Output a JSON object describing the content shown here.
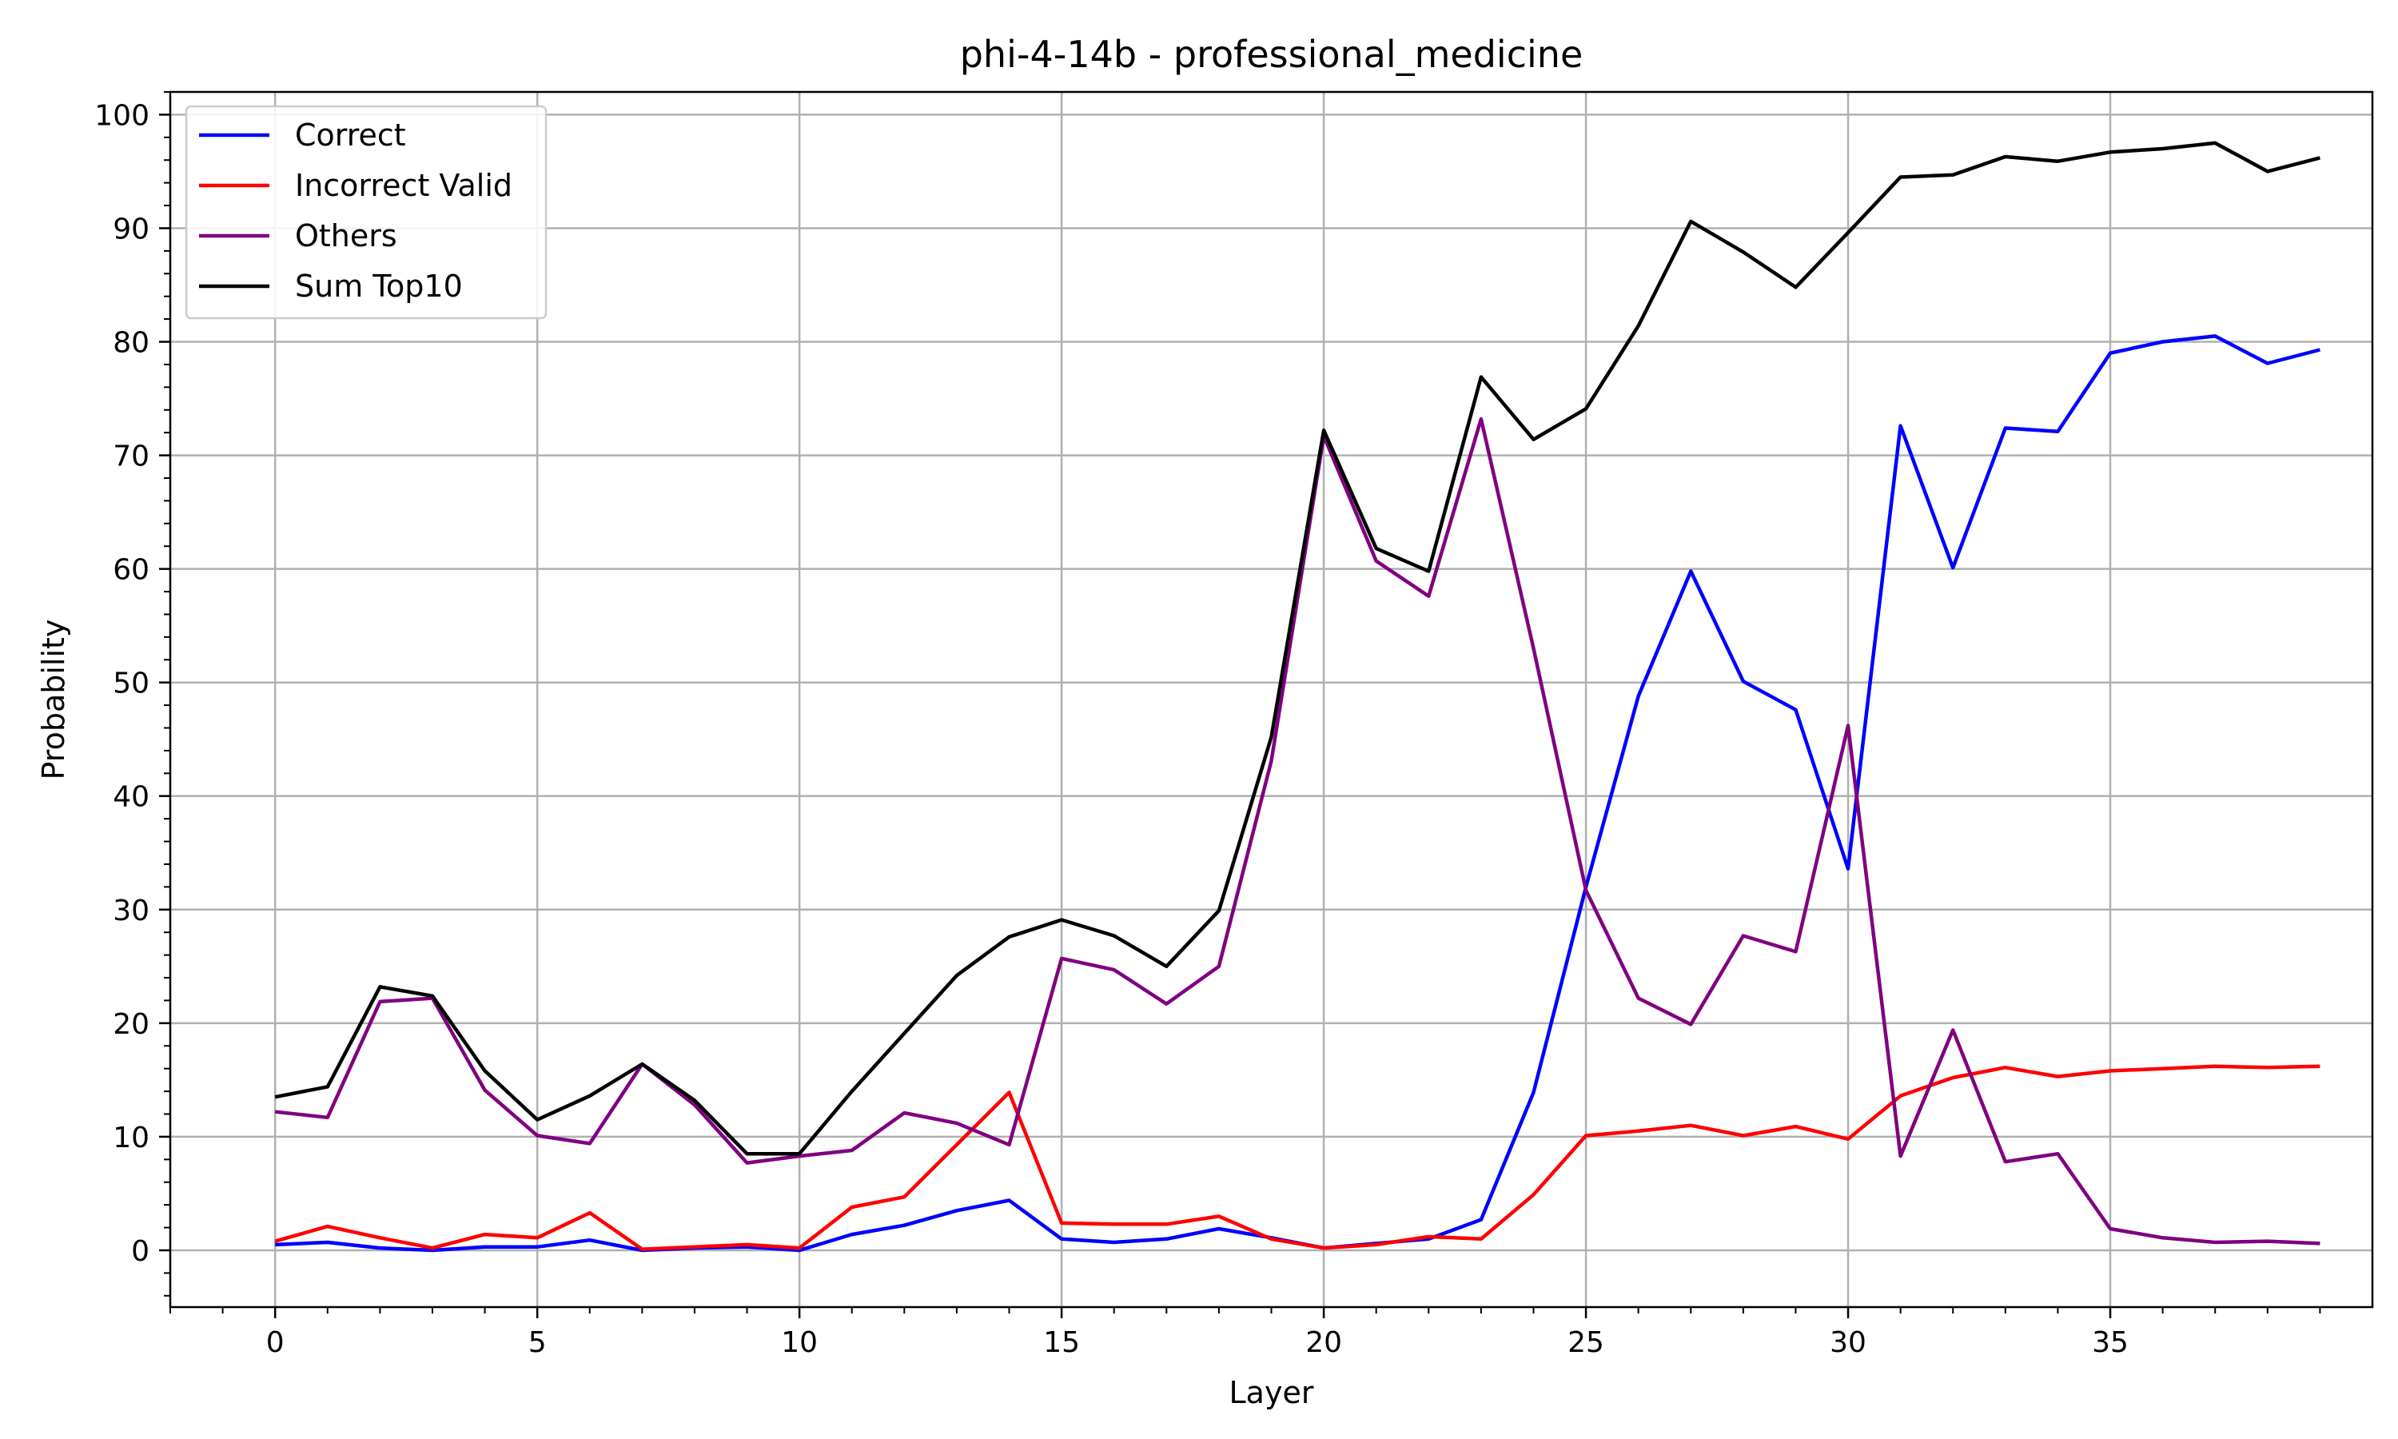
{
  "chart_data": {
    "type": "line",
    "title": "phi-4-14b - professional_medicine",
    "xlabel": "Layer",
    "ylabel": "Probability",
    "xlim": [
      -2,
      40
    ],
    "ylim": [
      -5,
      102
    ],
    "xticks": [
      0,
      5,
      10,
      15,
      20,
      25,
      30,
      35
    ],
    "yticks": [
      0,
      10,
      20,
      30,
      40,
      50,
      60,
      70,
      80,
      90,
      100
    ],
    "grid": true,
    "legend_position": "top-left",
    "x": [
      0,
      1,
      2,
      3,
      4,
      5,
      6,
      7,
      8,
      9,
      10,
      11,
      12,
      13,
      14,
      15,
      16,
      17,
      18,
      19,
      20,
      21,
      22,
      23,
      24,
      25,
      26,
      27,
      28,
      29,
      30,
      31,
      32,
      33,
      34,
      35,
      36,
      37,
      38,
      39
    ],
    "series": [
      {
        "name": "Correct",
        "color": "#0000ff",
        "values": [
          0.5,
          0.7,
          0.2,
          0.0,
          0.3,
          0.3,
          0.9,
          0.0,
          0.2,
          0.3,
          0.0,
          1.4,
          2.2,
          3.5,
          4.4,
          1.0,
          0.7,
          1.0,
          1.9,
          1.1,
          0.2,
          0.6,
          1.0,
          2.7,
          13.9,
          32.0,
          48.8,
          59.8,
          50.1,
          47.6,
          33.6,
          72.6,
          60.1,
          72.4,
          72.1,
          79.0,
          80.0,
          80.5,
          78.1,
          79.3
        ]
      },
      {
        "name": "Incorrect Valid",
        "color": "#ff0000",
        "values": [
          0.8,
          2.1,
          1.1,
          0.2,
          1.4,
          1.1,
          3.3,
          0.1,
          0.3,
          0.5,
          0.2,
          3.8,
          4.7,
          9.3,
          13.9,
          2.4,
          2.3,
          2.3,
          3.0,
          1.0,
          0.2,
          0.5,
          1.2,
          1.0,
          4.9,
          10.1,
          10.5,
          11.0,
          10.1,
          10.9,
          9.8,
          13.6,
          15.2,
          16.1,
          15.3,
          15.8,
          16.0,
          16.2,
          16.1,
          16.2
        ]
      },
      {
        "name": "Others",
        "color": "#800080",
        "values": [
          12.2,
          11.7,
          21.9,
          22.2,
          14.1,
          10.1,
          9.4,
          16.4,
          12.8,
          7.7,
          8.3,
          8.8,
          12.1,
          11.2,
          9.3,
          25.7,
          24.7,
          21.7,
          25.0,
          43.1,
          71.7,
          60.7,
          57.6,
          73.2,
          53.0,
          31.7,
          22.2,
          19.9,
          27.7,
          26.3,
          46.2,
          8.3,
          19.4,
          7.8,
          8.5,
          1.9,
          1.1,
          0.7,
          0.8,
          0.6
        ]
      },
      {
        "name": "Sum Top10",
        "color": "#000000",
        "values": [
          13.5,
          14.4,
          23.2,
          22.4,
          15.8,
          11.5,
          13.6,
          16.4,
          13.2,
          8.5,
          8.5,
          14.0,
          19.1,
          24.2,
          27.6,
          29.1,
          27.7,
          25.0,
          29.9,
          45.2,
          72.2,
          61.8,
          59.8,
          76.9,
          71.4,
          74.1,
          81.4,
          90.6,
          87.9,
          84.8,
          89.6,
          94.5,
          94.7,
          96.3,
          95.9,
          96.7,
          97.0,
          97.5,
          95.0,
          96.2
        ]
      }
    ]
  }
}
